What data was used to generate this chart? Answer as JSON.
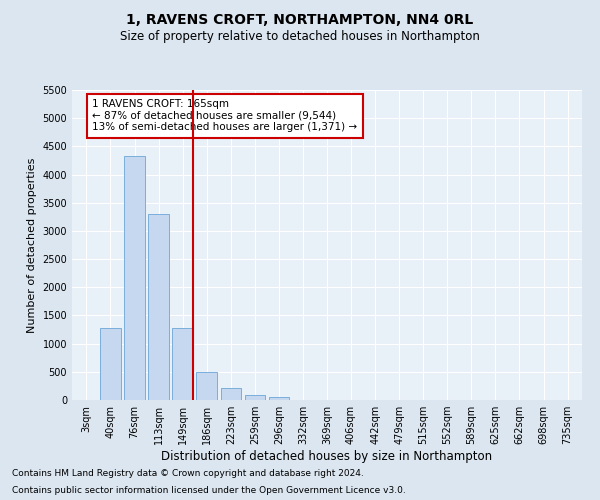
{
  "title": "1, RAVENS CROFT, NORTHAMPTON, NN4 0RL",
  "subtitle": "Size of property relative to detached houses in Northampton",
  "xlabel": "Distribution of detached houses by size in Northampton",
  "ylabel": "Number of detached properties",
  "bar_labels": [
    "3sqm",
    "40sqm",
    "76sqm",
    "113sqm",
    "149sqm",
    "186sqm",
    "223sqm",
    "259sqm",
    "296sqm",
    "332sqm",
    "369sqm",
    "406sqm",
    "442sqm",
    "479sqm",
    "515sqm",
    "552sqm",
    "589sqm",
    "625sqm",
    "662sqm",
    "698sqm",
    "735sqm"
  ],
  "bar_values": [
    0,
    1270,
    4330,
    3300,
    1280,
    490,
    210,
    90,
    60,
    0,
    0,
    0,
    0,
    0,
    0,
    0,
    0,
    0,
    0,
    0,
    0
  ],
  "bar_color": "#c5d8f0",
  "bar_edgecolor": "#7aaedc",
  "vline_color": "#cc0000",
  "ylim": [
    0,
    5500
  ],
  "annotation_title": "1 RAVENS CROFT: 165sqm",
  "annotation_line1": "← 87% of detached houses are smaller (9,544)",
  "annotation_line2": "13% of semi-detached houses are larger (1,371) →",
  "annotation_box_color": "#cc0000",
  "footer1": "Contains HM Land Registry data © Crown copyright and database right 2024.",
  "footer2": "Contains public sector information licensed under the Open Government Licence v3.0.",
  "bg_color": "#dce6f0",
  "plot_bg_color": "#e8f0f8",
  "grid_color": "#ffffff",
  "title_fontsize": 10,
  "subtitle_fontsize": 8.5,
  "xlabel_fontsize": 8.5,
  "ylabel_fontsize": 8,
  "tick_fontsize": 7,
  "footer_fontsize": 6.5,
  "ann_fontsize": 7.5
}
